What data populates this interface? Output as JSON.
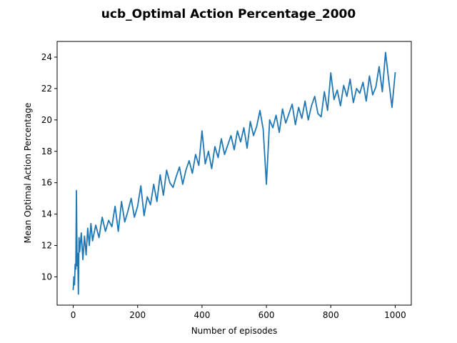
{
  "chart_data": {
    "type": "line",
    "title": "ucb_Optimal Action Percentage_2000",
    "xlabel": "Number of episodes",
    "ylabel": "Mean Optimal Action Percentage",
    "xlim": [
      -50,
      1050
    ],
    "ylim": [
      8.2,
      25.0
    ],
    "xticks": [
      0,
      200,
      400,
      600,
      800,
      1000
    ],
    "yticks": [
      10,
      12,
      14,
      16,
      18,
      20,
      22,
      24
    ],
    "grid": false,
    "line_color": "#1f77b4",
    "series": [
      {
        "x": [
          0,
          2,
          4,
          6,
          8,
          10,
          12,
          14,
          16,
          18,
          20,
          25,
          30,
          35,
          40,
          45,
          50,
          55,
          60,
          70,
          80,
          90,
          100,
          110,
          120,
          130,
          140,
          150,
          160,
          170,
          180,
          190,
          200,
          210,
          220,
          230,
          240,
          250,
          260,
          270,
          280,
          290,
          300,
          310,
          320,
          330,
          340,
          350,
          360,
          370,
          380,
          390,
          400,
          410,
          420,
          430,
          440,
          450,
          460,
          470,
          480,
          490,
          500,
          510,
          520,
          530,
          540,
          550,
          560,
          570,
          580,
          590,
          600,
          610,
          620,
          630,
          640,
          650,
          660,
          670,
          680,
          690,
          700,
          710,
          720,
          730,
          740,
          750,
          760,
          770,
          780,
          790,
          800,
          810,
          820,
          830,
          840,
          850,
          860,
          870,
          880,
          890,
          900,
          910,
          920,
          930,
          940,
          950,
          960,
          970,
          980,
          990,
          1000
        ],
        "y": [
          9.2,
          10.0,
          9.5,
          10.8,
          10.5,
          15.5,
          10.7,
          11.5,
          8.9,
          12.5,
          11.6,
          12.8,
          11.1,
          12.6,
          11.4,
          13.1,
          12.0,
          13.4,
          12.3,
          13.3,
          12.5,
          13.8,
          12.9,
          13.6,
          13.2,
          14.5,
          12.9,
          14.8,
          13.5,
          14.2,
          15.0,
          13.8,
          14.5,
          15.8,
          13.9,
          15.1,
          14.6,
          15.9,
          14.8,
          16.5,
          15.2,
          16.8,
          16.0,
          15.7,
          16.4,
          17.0,
          15.9,
          16.8,
          17.4,
          16.6,
          17.8,
          17.1,
          19.3,
          17.2,
          18.0,
          16.9,
          18.3,
          17.6,
          18.8,
          17.8,
          18.4,
          19.0,
          18.1,
          19.3,
          18.6,
          19.5,
          18.2,
          19.9,
          19.0,
          19.6,
          20.6,
          19.4,
          15.9,
          20.0,
          19.5,
          20.3,
          19.2,
          20.7,
          19.8,
          20.4,
          21.0,
          19.7,
          20.8,
          20.1,
          21.2,
          20.0,
          20.9,
          21.5,
          20.4,
          20.2,
          21.8,
          20.6,
          23.0,
          21.3,
          21.9,
          20.9,
          22.2,
          21.5,
          22.6,
          21.1,
          22.0,
          21.7,
          22.4,
          21.2,
          22.8,
          21.6,
          22.1,
          23.4,
          21.8,
          24.3,
          22.5,
          20.8,
          23.0
        ]
      }
    ]
  }
}
